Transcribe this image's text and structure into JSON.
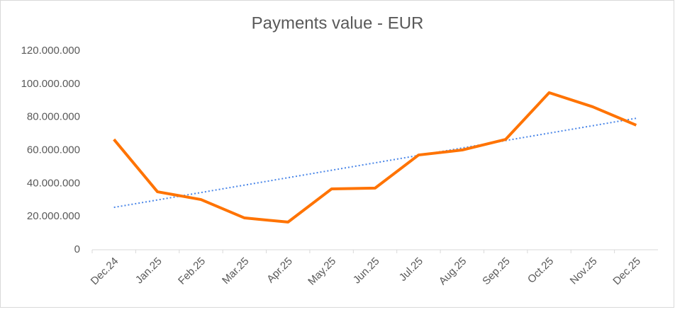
{
  "chart_data": {
    "type": "line",
    "title": "Payments value - EUR",
    "categories": [
      "Dec.24",
      "Jan.25",
      "Feb.25",
      "Mar.25",
      "Apr.25",
      "May.25",
      "Jun.25",
      "Jul.25",
      "Aug.25",
      "Sep.25",
      "Oct.25",
      "Nov.25",
      "Dec.25"
    ],
    "values": [
      66600000,
      35000000,
      30300000,
      19200000,
      16700000,
      36700000,
      37200000,
      57200000,
      60200000,
      66600000,
      94800000,
      86300000,
      75200000
    ],
    "color": "#ff7300",
    "trendline": "linear",
    "trendline_color": "#4a86e8",
    "ylim": [
      0,
      120000000
    ],
    "yticks": [
      0,
      {
        "value": 20000000,
        "label": "20.000.000"
      },
      {
        "value": 40000000,
        "label": "40.000.000"
      },
      {
        "value": 60000000,
        "label": "60.000.000"
      },
      {
        "value": 80000000,
        "label": "80.000.000"
      },
      {
        "value": 100000000,
        "label": "100.000.000"
      },
      {
        "value": 120000000,
        "label": "120.000.000"
      }
    ],
    "grid": false
  }
}
